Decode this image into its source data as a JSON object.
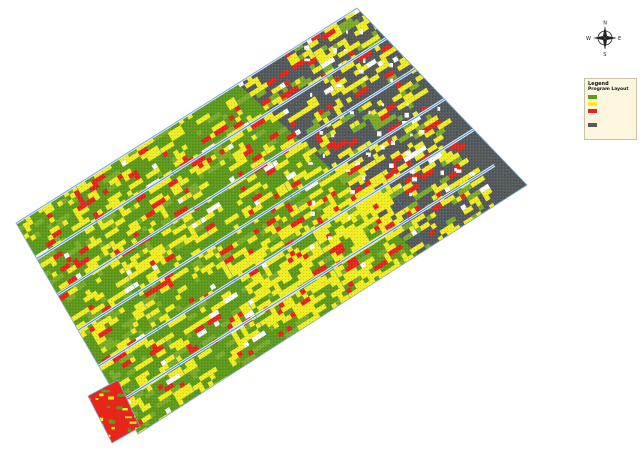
{
  "north_arrow": {
    "n": "N",
    "s": "S",
    "e": "E",
    "w": "W"
  },
  "legend": {
    "title": "Legend",
    "subtitle": "Program Layout",
    "items": [
      {
        "label": "",
        "color": "#5e9a1c"
      },
      {
        "label": "",
        "color": "#f2ee22"
      },
      {
        "label": "",
        "color": "#e8251b"
      },
      {
        "label": "",
        "color": "#fdf6de"
      },
      {
        "label": "",
        "color": "#555a5d"
      }
    ]
  },
  "colors": {
    "green": "#5e9a1c",
    "green_light": "#7aad2c",
    "yellow": "#f2ee22",
    "red": "#e8251b",
    "grey": "#555a5d",
    "road": "#3b82c8"
  }
}
